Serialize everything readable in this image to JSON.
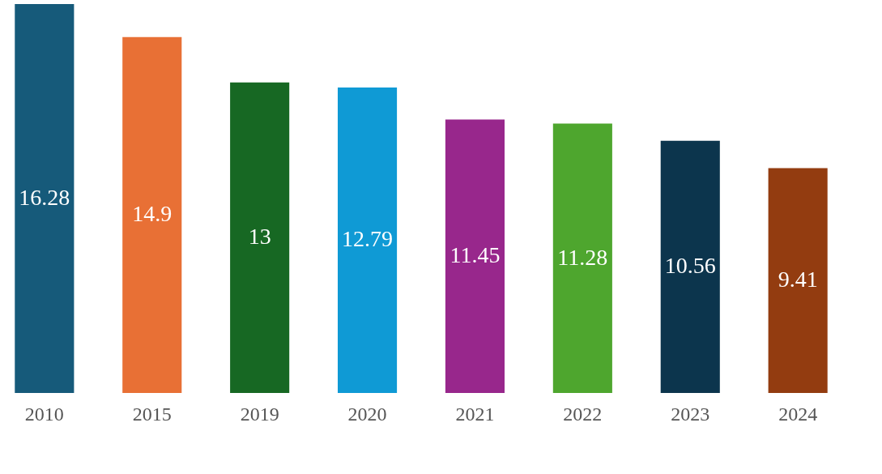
{
  "chart_data": {
    "type": "bar",
    "categories": [
      "2010",
      "2015",
      "2019",
      "2020",
      "2021",
      "2022",
      "2023",
      "2024"
    ],
    "values": [
      16.28,
      14.9,
      13,
      12.79,
      11.45,
      11.28,
      10.56,
      9.41
    ],
    "colors": [
      "#165a7a",
      "#e87035",
      "#176823",
      "#0f9ad5",
      "#98278c",
      "#4ea62e",
      "#0c354d",
      "#933c10"
    ],
    "data_labels": true,
    "grid": false
  }
}
